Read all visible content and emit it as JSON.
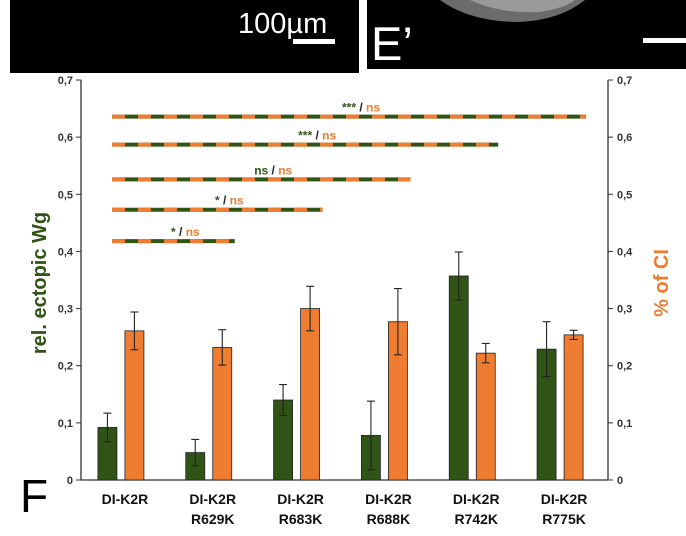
{
  "panels": {
    "scale_bar_label": "100µm",
    "panel_e_prime": "E’",
    "panel_f": "F"
  },
  "colors": {
    "green": "#2f5416",
    "orange": "#ee7d31",
    "axis": "#333333"
  },
  "chart_data": {
    "type": "bar",
    "title": "",
    "ylabel_left": "rel. ectopic Wg",
    "ylabel_right": "% of CI",
    "ylim": [
      0,
      0.7
    ],
    "yticks": [
      "0",
      "0,1",
      "0,2",
      "0,3",
      "0,4",
      "0,5",
      "0,6",
      "0,7"
    ],
    "grid": false,
    "categories": [
      [
        "DI-K2R"
      ],
      [
        "DI-K2R",
        "R629K"
      ],
      [
        "DI-K2R",
        "R683K"
      ],
      [
        "DI-K2R",
        "R688K"
      ],
      [
        "DI-K2R",
        "R742K"
      ],
      [
        "DI-K2R",
        "R775K"
      ]
    ],
    "series": [
      {
        "axis": "left",
        "color": "#2f5416",
        "values": [
          0.092,
          0.048,
          0.14,
          0.078,
          0.357,
          0.229
        ],
        "errors": [
          0.025,
          0.023,
          0.027,
          0.06,
          0.042,
          0.048
        ]
      },
      {
        "axis": "right",
        "color": "#ee7d31",
        "values": [
          0.261,
          0.232,
          0.3,
          0.277,
          0.222,
          0.254
        ],
        "errors": [
          0.033,
          0.031,
          0.039,
          0.058,
          0.017,
          0.008
        ]
      }
    ],
    "significance": [
      {
        "from": 0,
        "to": 5,
        "y": 0.636,
        "green_label": "***",
        "sep": "/",
        "orange_label": "ns"
      },
      {
        "from": 0,
        "to": 4,
        "y": 0.587,
        "green_label": "***",
        "sep": "/",
        "orange_label": "ns"
      },
      {
        "from": 0,
        "to": 3,
        "y": 0.526,
        "green_label": "ns",
        "sep": "/",
        "orange_label": "ns"
      },
      {
        "from": 0,
        "to": 2,
        "y": 0.473,
        "green_label": "*",
        "sep": "/",
        "orange_label": "ns"
      },
      {
        "from": 0,
        "to": 1,
        "y": 0.418,
        "green_label": "*",
        "sep": "/",
        "orange_label": "ns"
      }
    ]
  }
}
